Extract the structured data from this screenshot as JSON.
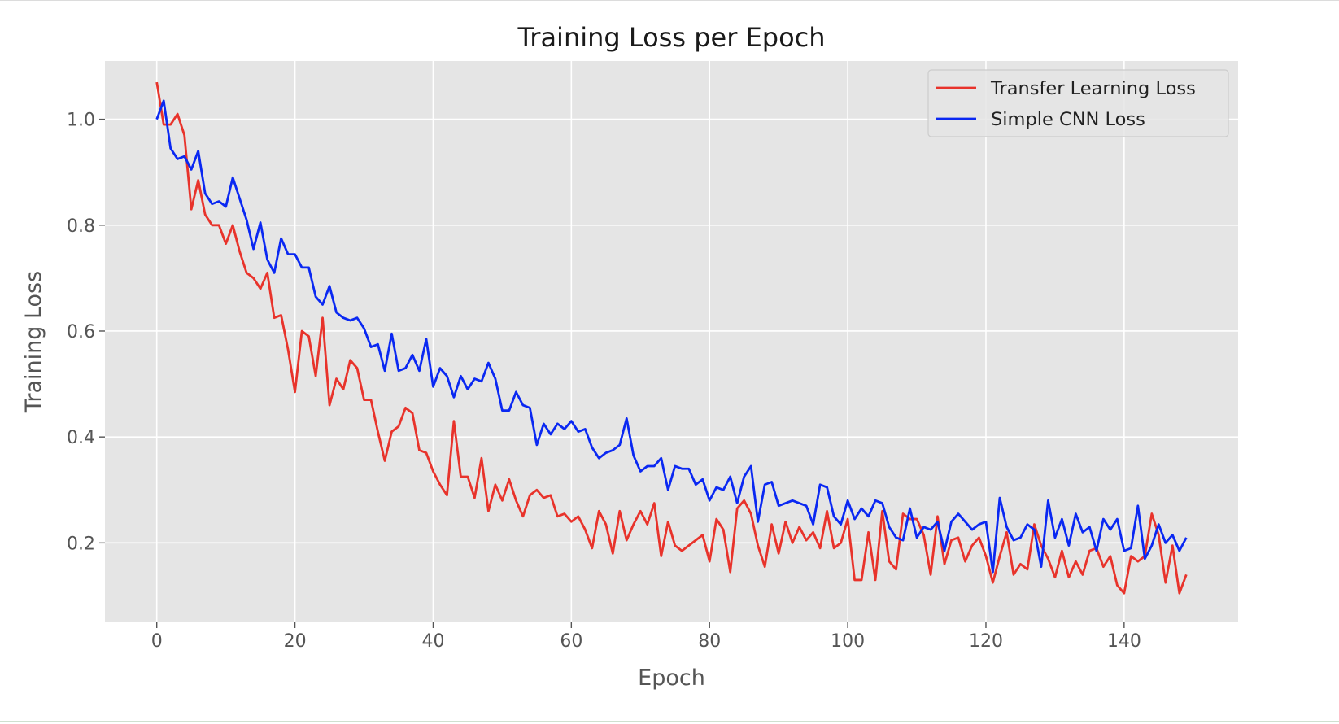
{
  "chart_data": {
    "type": "line",
    "title": "Training Loss per Epoch",
    "xlabel": "Epoch",
    "ylabel": "Training Loss",
    "xlim": [
      -7.5,
      156.5
    ],
    "ylim": [
      0.05,
      1.11
    ],
    "xticks": [
      0,
      20,
      40,
      60,
      80,
      100,
      120,
      140
    ],
    "xtick_labels": [
      "0",
      "20",
      "40",
      "60",
      "80",
      "100",
      "120",
      "140"
    ],
    "yticks": [
      0.2,
      0.4,
      0.6,
      0.8,
      1.0
    ],
    "ytick_labels": [
      "0.2",
      "0.4",
      "0.6",
      "0.8",
      "1.0"
    ],
    "grid": true,
    "legend_position": "top-right",
    "style": {
      "background": "#e5e5e5",
      "grid": "#ffffff"
    },
    "series": [
      {
        "name": "Transfer Learning Loss",
        "color": "#e8332b",
        "x_start": 0,
        "values": [
          1.07,
          0.99,
          0.99,
          1.01,
          0.97,
          0.83,
          0.885,
          0.82,
          0.8,
          0.8,
          0.765,
          0.8,
          0.75,
          0.71,
          0.7,
          0.68,
          0.71,
          0.625,
          0.63,
          0.565,
          0.485,
          0.6,
          0.59,
          0.515,
          0.625,
          0.46,
          0.51,
          0.49,
          0.545,
          0.53,
          0.47,
          0.47,
          0.41,
          0.355,
          0.41,
          0.42,
          0.455,
          0.445,
          0.375,
          0.37,
          0.335,
          0.31,
          0.29,
          0.43,
          0.325,
          0.325,
          0.285,
          0.36,
          0.26,
          0.31,
          0.28,
          0.32,
          0.28,
          0.25,
          0.29,
          0.3,
          0.285,
          0.29,
          0.25,
          0.255,
          0.24,
          0.25,
          0.225,
          0.19,
          0.26,
          0.235,
          0.18,
          0.26,
          0.205,
          0.235,
          0.26,
          0.235,
          0.275,
          0.175,
          0.24,
          0.195,
          0.185,
          0.195,
          0.205,
          0.215,
          0.165,
          0.245,
          0.225,
          0.145,
          0.265,
          0.28,
          0.255,
          0.195,
          0.155,
          0.235,
          0.18,
          0.24,
          0.2,
          0.23,
          0.205,
          0.22,
          0.19,
          0.26,
          0.19,
          0.2,
          0.245,
          0.13,
          0.13,
          0.22,
          0.13,
          0.26,
          0.165,
          0.15,
          0.255,
          0.245,
          0.245,
          0.215,
          0.14,
          0.25,
          0.16,
          0.205,
          0.21,
          0.165,
          0.195,
          0.21,
          0.175,
          0.125,
          0.175,
          0.22,
          0.14,
          0.16,
          0.15,
          0.235,
          0.195,
          0.17,
          0.135,
          0.185,
          0.135,
          0.165,
          0.14,
          0.185,
          0.19,
          0.155,
          0.175,
          0.12,
          0.105,
          0.175,
          0.165,
          0.175,
          0.255,
          0.215,
          0.125,
          0.195,
          0.105,
          0.14
        ]
      },
      {
        "name": "Simple CNN Loss",
        "color": "#0a28f2",
        "x_start": 0,
        "values": [
          1.0,
          1.035,
          0.945,
          0.925,
          0.93,
          0.905,
          0.94,
          0.86,
          0.84,
          0.845,
          0.835,
          0.89,
          0.85,
          0.81,
          0.755,
          0.805,
          0.735,
          0.71,
          0.775,
          0.745,
          0.745,
          0.72,
          0.72,
          0.665,
          0.65,
          0.685,
          0.635,
          0.625,
          0.62,
          0.625,
          0.605,
          0.57,
          0.575,
          0.525,
          0.595,
          0.525,
          0.53,
          0.555,
          0.525,
          0.585,
          0.495,
          0.53,
          0.515,
          0.475,
          0.515,
          0.49,
          0.51,
          0.505,
          0.54,
          0.51,
          0.45,
          0.45,
          0.485,
          0.46,
          0.455,
          0.385,
          0.425,
          0.405,
          0.425,
          0.415,
          0.43,
          0.41,
          0.415,
          0.38,
          0.36,
          0.37,
          0.375,
          0.385,
          0.435,
          0.365,
          0.335,
          0.345,
          0.345,
          0.36,
          0.3,
          0.345,
          0.34,
          0.34,
          0.31,
          0.32,
          0.28,
          0.305,
          0.3,
          0.325,
          0.275,
          0.325,
          0.345,
          0.24,
          0.31,
          0.315,
          0.27,
          0.275,
          0.28,
          0.275,
          0.27,
          0.235,
          0.31,
          0.305,
          0.25,
          0.235,
          0.28,
          0.245,
          0.265,
          0.25,
          0.28,
          0.275,
          0.23,
          0.21,
          0.205,
          0.265,
          0.21,
          0.23,
          0.225,
          0.24,
          0.185,
          0.24,
          0.255,
          0.24,
          0.225,
          0.235,
          0.24,
          0.145,
          0.285,
          0.23,
          0.205,
          0.21,
          0.235,
          0.225,
          0.155,
          0.28,
          0.21,
          0.245,
          0.195,
          0.255,
          0.22,
          0.23,
          0.185,
          0.245,
          0.225,
          0.245,
          0.185,
          0.19,
          0.27,
          0.17,
          0.195,
          0.235,
          0.2,
          0.215,
          0.185,
          0.21
        ]
      }
    ]
  }
}
